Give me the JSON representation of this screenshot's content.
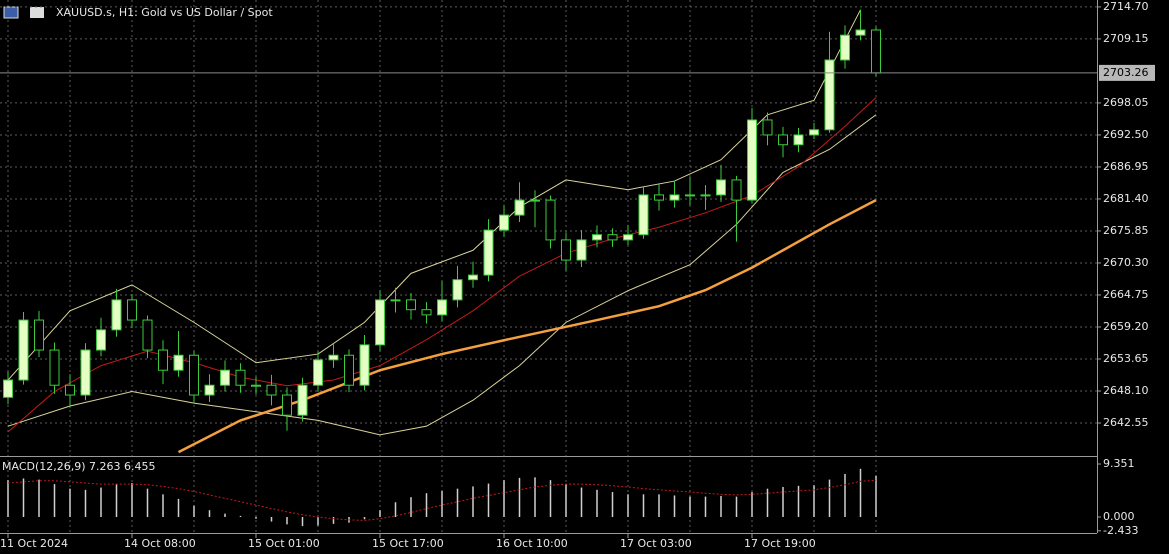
{
  "chart_data": [
    {
      "type": "candlestick",
      "title": "XAUUSD.s, H1:  Gold vs US Dollar / Spot",
      "categories": [
        "11 Oct 2024",
        null,
        null,
        null,
        null,
        null,
        null,
        null,
        "14 Oct 08:00",
        null,
        null,
        null,
        null,
        null,
        null,
        null,
        "15 Oct 01:00",
        null,
        null,
        null,
        null,
        null,
        null,
        null,
        "15 Oct 17:00",
        null,
        null,
        null,
        null,
        null,
        null,
        null,
        "16 Oct 10:00",
        null,
        null,
        null,
        null,
        null,
        null,
        null,
        "17 Oct 03:00",
        null,
        null,
        null,
        null,
        null,
        null,
        null,
        "17 Oct 19:00",
        null,
        null,
        null,
        null,
        null,
        null,
        null,
        null
      ],
      "open": [
        2647.0,
        2650.0,
        2660.4,
        2655.2,
        2649.1,
        2647.4,
        2655.2,
        2658.7,
        2663.9,
        2660.4,
        2655.2,
        2651.7,
        2654.3,
        2647.4,
        2649.1,
        2651.7,
        2649.1,
        2649.1,
        2647.4,
        2643.9,
        2649.1,
        2653.5,
        2654.3,
        2649.1,
        2656.1,
        2663.9,
        2663.9,
        2662.2,
        2661.3,
        2663.9,
        2667.4,
        2668.2,
        2676.0,
        2678.6,
        2681.2,
        2681.2,
        2674.3,
        2670.8,
        2674.3,
        2675.2,
        2674.3,
        2675.2,
        2682.1,
        2681.2,
        2682.1,
        2682.1,
        2682.1,
        2684.7,
        2681.2,
        2695.1,
        2692.5,
        2690.8,
        2692.5,
        2693.4,
        2705.5,
        2709.8,
        2710.7
      ],
      "high": [
        2651.5,
        2661.8,
        2662.0,
        2656.5,
        2651.0,
        2656.4,
        2660.8,
        2665.8,
        2664.9,
        2661.2,
        2656.9,
        2658.5,
        2655.1,
        2651.0,
        2653.4,
        2652.9,
        2650.6,
        2650.9,
        2648.7,
        2650.4,
        2655.0,
        2656.2,
        2655.3,
        2657.8,
        2665.6,
        2666.0,
        2665.1,
        2663.5,
        2667.2,
        2669.8,
        2670.5,
        2677.9,
        2680.4,
        2684.3,
        2682.9,
        2682.0,
        2675.6,
        2676.0,
        2676.8,
        2676.3,
        2676.9,
        2683.6,
        2684.0,
        2684.6,
        2685.2,
        2683.8,
        2687.3,
        2685.4,
        2697.2,
        2696.4,
        2693.9,
        2693.7,
        2694.6,
        2710.4,
        2711.5,
        2714.2,
        2711.3
      ],
      "low": [
        2645.8,
        2649.2,
        2654.0,
        2647.6,
        2645.2,
        2646.5,
        2654.1,
        2657.5,
        2659.0,
        2653.8,
        2649.3,
        2650.6,
        2645.9,
        2646.2,
        2648.0,
        2647.8,
        2647.5,
        2645.6,
        2641.2,
        2642.8,
        2648.0,
        2652.1,
        2647.9,
        2648.2,
        2655.0,
        2661.7,
        2660.5,
        2659.8,
        2660.2,
        2662.6,
        2666.0,
        2667.1,
        2674.8,
        2677.4,
        2676.5,
        2672.8,
        2668.9,
        2669.6,
        2673.0,
        2673.1,
        2673.4,
        2674.5,
        2679.4,
        2679.9,
        2680.3,
        2679.5,
        2680.9,
        2674.0,
        2680.6,
        2690.7,
        2688.6,
        2689.5,
        2691.8,
        2692.9,
        2704.0,
        2708.9,
        2702.6
      ],
      "close": [
        2650.0,
        2660.4,
        2655.2,
        2649.1,
        2647.4,
        2655.2,
        2658.7,
        2663.9,
        2660.4,
        2655.2,
        2651.7,
        2654.3,
        2647.4,
        2649.1,
        2651.7,
        2649.1,
        2649.1,
        2647.4,
        2643.9,
        2649.1,
        2653.5,
        2654.3,
        2649.1,
        2656.1,
        2663.9,
        2663.9,
        2662.2,
        2661.3,
        2663.9,
        2667.4,
        2668.2,
        2676.0,
        2678.6,
        2681.2,
        2681.2,
        2674.3,
        2670.8,
        2674.3,
        2675.2,
        2674.3,
        2675.2,
        2682.1,
        2681.2,
        2682.1,
        2682.1,
        2682.1,
        2684.7,
        2681.2,
        2695.1,
        2692.5,
        2690.8,
        2692.5,
        2693.4,
        2705.5,
        2709.8,
        2710.7,
        2703.26
      ],
      "up_color": "#e4ffc4",
      "down_color": "#000000",
      "outline_color": "#3ccc3c",
      "series": [
        {
          "color": "#d9d49a",
          "width": 1,
          "x": [
            0,
            4,
            8,
            12,
            16,
            20,
            23,
            26,
            30,
            33,
            36,
            40,
            43,
            46,
            49,
            52,
            55
          ],
          "values": [
            2650.0,
            2662.0,
            2666.5,
            2660.0,
            2653.0,
            2654.5,
            2660.0,
            2668.5,
            2672.5,
            2680.0,
            2684.7,
            2683.0,
            2684.5,
            2688.2,
            2696.0,
            2698.5,
            2714.2
          ]
        },
        {
          "color": "#d9d49a",
          "width": 1,
          "x": [
            0,
            4,
            8,
            12,
            16,
            20,
            24,
            27,
            30,
            33,
            36,
            40,
            44,
            47,
            50,
            53,
            56
          ],
          "values": [
            2642.0,
            2645.5,
            2648.0,
            2646.0,
            2644.5,
            2643.0,
            2640.5,
            2642.0,
            2646.5,
            2652.5,
            2660.0,
            2665.5,
            2670.0,
            2677.0,
            2686.0,
            2690.0,
            2696.0
          ]
        },
        {
          "color": "#c41a1a",
          "width": 1,
          "x": [
            0,
            3,
            6,
            9,
            12,
            15,
            18,
            21,
            24,
            27,
            30,
            33,
            36,
            39,
            42,
            45,
            48,
            51,
            54,
            56
          ],
          "values": [
            2641.0,
            2648.0,
            2652.5,
            2655.0,
            2653.0,
            2650.5,
            2649.0,
            2650.0,
            2652.5,
            2657.0,
            2662.0,
            2668.0,
            2672.0,
            2674.5,
            2676.5,
            2679.0,
            2682.0,
            2687.0,
            2694.0,
            2699.0
          ]
        },
        {
          "color": "#f5a040",
          "width": 2.5,
          "x": [
            11,
            15,
            19,
            24,
            28,
            32,
            38,
            42,
            45,
            48,
            50,
            53,
            56
          ],
          "values": [
            2637.5,
            2643.0,
            2646.5,
            2651.7,
            2654.5,
            2656.9,
            2660.4,
            2662.8,
            2665.6,
            2669.5,
            2672.5,
            2677.0,
            2681.2
          ]
        }
      ],
      "current_price": 2703.26,
      "ylim": [
        2637.0,
        2715.9
      ],
      "yticks": [
        {
          "value": 2714.7,
          "label": "2714.70"
        },
        2709.15,
        2698.05,
        {
          "value": 2692.5,
          "label": "2692.50"
        },
        2686.95,
        {
          "value": 2681.4,
          "label": "2681.40"
        },
        2675.85,
        {
          "value": 2670.3,
          "label": "2670.30"
        },
        2664.75,
        {
          "value": 2659.2,
          "label": "2659.20"
        },
        2653.65,
        {
          "value": 2648.1,
          "label": "2648.10"
        },
        2642.55
      ],
      "grid": true
    },
    {
      "type": "bar",
      "title": "MACD(12,26,9) 7.263 6.455",
      "color": "#d0d0d0",
      "values": [
        6.5,
        6.8,
        6.6,
        5.8,
        5.0,
        4.8,
        5.2,
        5.8,
        6.0,
        5.0,
        4.0,
        3.2,
        2.0,
        1.2,
        0.6,
        0.2,
        -0.3,
        -0.8,
        -1.3,
        -1.6,
        -1.5,
        -1.2,
        -1.0,
        -0.4,
        1.2,
        2.6,
        3.5,
        4.2,
        4.6,
        5.0,
        5.4,
        5.9,
        6.5,
        6.9,
        7.0,
        6.5,
        5.8,
        5.2,
        4.8,
        4.4,
        4.0,
        4.0,
        4.0,
        3.8,
        3.6,
        3.6,
        3.7,
        3.6,
        4.4,
        5.0,
        5.3,
        5.5,
        5.6,
        6.6,
        7.6,
        8.5,
        7.263
      ],
      "series": [
        {
          "color": "#c41a1a",
          "values": [
            6.0,
            6.2,
            6.4,
            6.4,
            6.2,
            6.0,
            5.8,
            5.8,
            5.8,
            5.7,
            5.4,
            5.0,
            4.5,
            3.9,
            3.3,
            2.7,
            2.1,
            1.5,
            0.9,
            0.4,
            0.0,
            -0.3,
            -0.5,
            -0.6,
            -0.3,
            0.2,
            0.8,
            1.5,
            2.1,
            2.7,
            3.3,
            3.8,
            4.3,
            4.8,
            5.3,
            5.6,
            5.8,
            5.8,
            5.7,
            5.5,
            5.3,
            5.0,
            4.8,
            4.6,
            4.4,
            4.2,
            4.0,
            3.9,
            4.0,
            4.2,
            4.4,
            4.6,
            4.8,
            5.2,
            5.7,
            6.3,
            6.455
          ]
        }
      ],
      "ylim": [
        -2.82,
        10.41
      ],
      "yticks": [
        9.351,
        {
          "value": 0,
          "label": "0.000"
        },
        -2.433
      ]
    }
  ]
}
